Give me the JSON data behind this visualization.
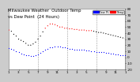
{
  "title": "Milwaukee Weather  Outdoor Temp",
  "title2": "vs Dew Point  (24 Hours)",
  "bg_color": "#cccccc",
  "plot_bg": "#ffffff",
  "temp_color_low": "#000000",
  "temp_color_high": "#ff0000",
  "dew_color": "#0000ff",
  "legend_temp_color": "#ff0000",
  "legend_dew_color": "#0000ff",
  "ylim": [
    -20,
    80
  ],
  "xlim": [
    0,
    288
  ],
  "vline_positions": [
    72,
    144,
    216
  ],
  "xtick_positions": [
    0,
    24,
    48,
    72,
    96,
    120,
    144,
    168,
    192,
    216,
    240,
    264,
    288
  ],
  "xtick_labels": [
    "1",
    "3",
    "5",
    "7",
    "9",
    "11",
    "1",
    "3",
    "5",
    "7",
    "9",
    "11",
    "1"
  ],
  "title_fontsize": 3.8,
  "tick_fontsize": 3.0,
  "marker_size": 0.8,
  "hours": [
    0,
    6,
    12,
    18,
    24,
    30,
    36,
    42,
    48,
    54,
    60,
    66,
    72,
    78,
    84,
    90,
    96,
    102,
    108,
    114,
    120,
    126,
    132,
    138,
    144,
    150,
    156,
    162,
    168,
    174,
    180,
    186,
    192,
    198,
    204,
    210,
    216,
    222,
    228,
    234,
    240,
    246,
    252,
    258,
    264,
    270,
    276,
    282,
    288
  ],
  "temp": [
    45,
    43,
    38,
    35,
    30,
    28,
    26,
    23,
    20,
    20,
    22,
    25,
    30,
    35,
    42,
    48,
    52,
    55,
    55,
    54,
    52,
    50,
    50,
    48,
    48,
    47,
    47,
    46,
    46,
    45,
    45,
    45,
    44,
    44,
    44,
    43,
    42,
    41,
    41,
    40,
    39,
    38,
    37,
    36,
    35,
    34,
    33,
    32,
    31
  ],
  "dew": [
    15,
    14,
    12,
    10,
    8,
    6,
    5,
    4,
    3,
    2,
    2,
    3,
    5,
    7,
    10,
    12,
    14,
    16,
    17,
    18,
    18,
    18,
    17,
    16,
    15,
    14,
    14,
    13,
    13,
    12,
    12,
    12,
    11,
    11,
    10,
    10,
    9,
    9,
    8,
    8,
    7,
    7,
    6,
    6,
    5,
    5,
    4,
    4,
    3
  ]
}
